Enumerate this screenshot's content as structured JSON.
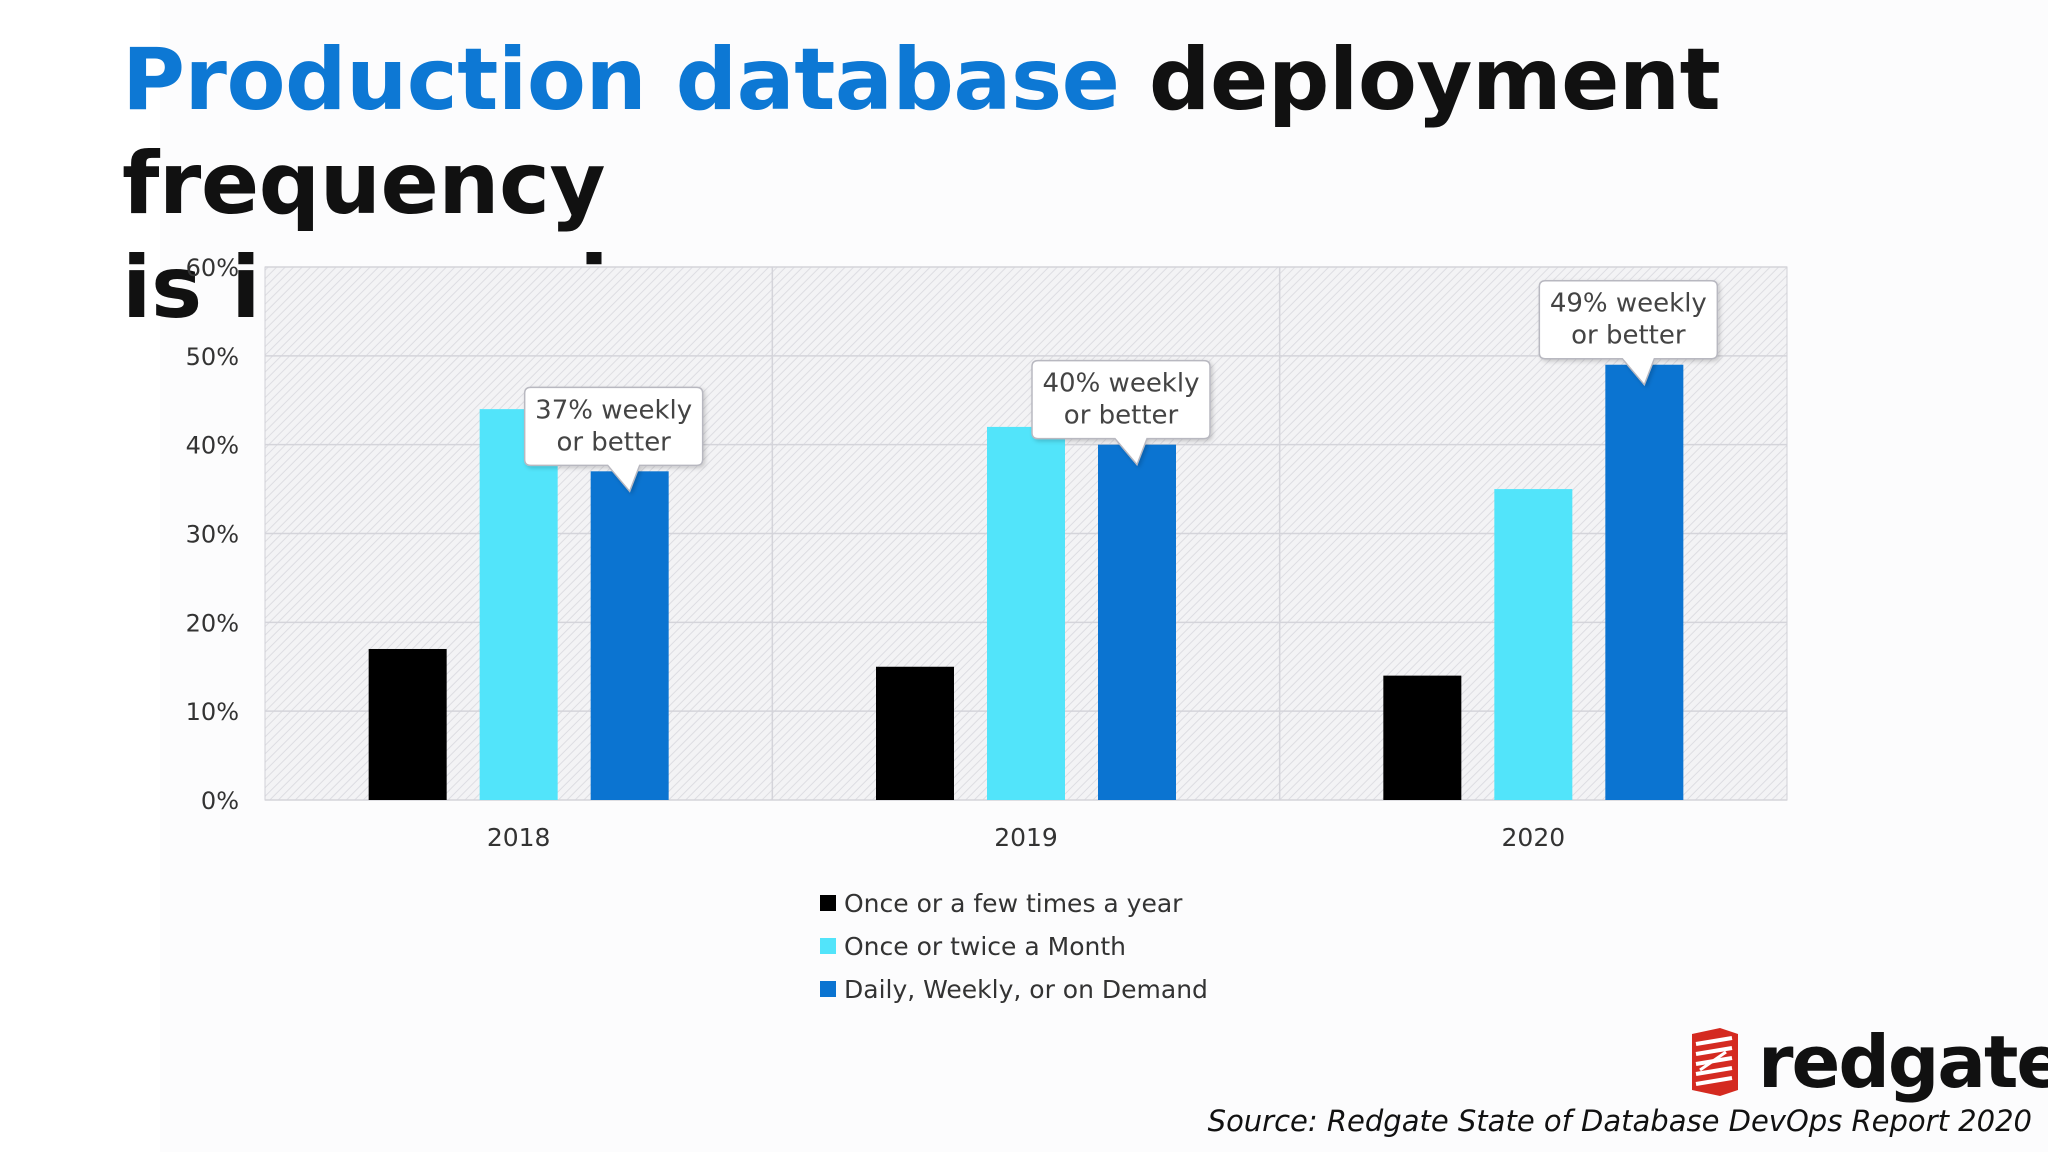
{
  "slide": {
    "title_accent": "Production database",
    "title_rest_line1": " deployment frequency",
    "title_line2": "is increasing",
    "source": "Source: Redgate State of Database DevOps Report 2020",
    "logo_text": "redgate"
  },
  "colors": {
    "accent": "#0d78d4",
    "series": [
      "#000000",
      "#52e4fa",
      "#0b74d1"
    ],
    "logo_red": "#d42a20"
  },
  "chart_data": {
    "type": "bar",
    "title": "",
    "xlabel": "",
    "ylabel": "",
    "categories": [
      "2018",
      "2019",
      "2020"
    ],
    "series": [
      {
        "name": "Once or a few times a year",
        "values": [
          17,
          15,
          14
        ]
      },
      {
        "name": "Once or twice a Month",
        "values": [
          44,
          42,
          35
        ]
      },
      {
        "name": "Daily, Weekly, or on Demand",
        "values": [
          37,
          40,
          49
        ]
      }
    ],
    "ylim": [
      0,
      60
    ],
    "yticks": [
      0,
      10,
      20,
      30,
      40,
      50,
      60
    ],
    "ytick_labels": [
      "0%",
      "10%",
      "20%",
      "30%",
      "40%",
      "50%",
      "60%"
    ],
    "grid": true,
    "legend_position": "bottom",
    "annotations": [
      {
        "category": "2018",
        "series": 2,
        "lines": [
          "37% weekly",
          "or better"
        ]
      },
      {
        "category": "2019",
        "series": 2,
        "lines": [
          "40% weekly",
          "or better"
        ]
      },
      {
        "category": "2020",
        "series": 2,
        "lines": [
          "49% weekly",
          "or better"
        ]
      }
    ]
  }
}
